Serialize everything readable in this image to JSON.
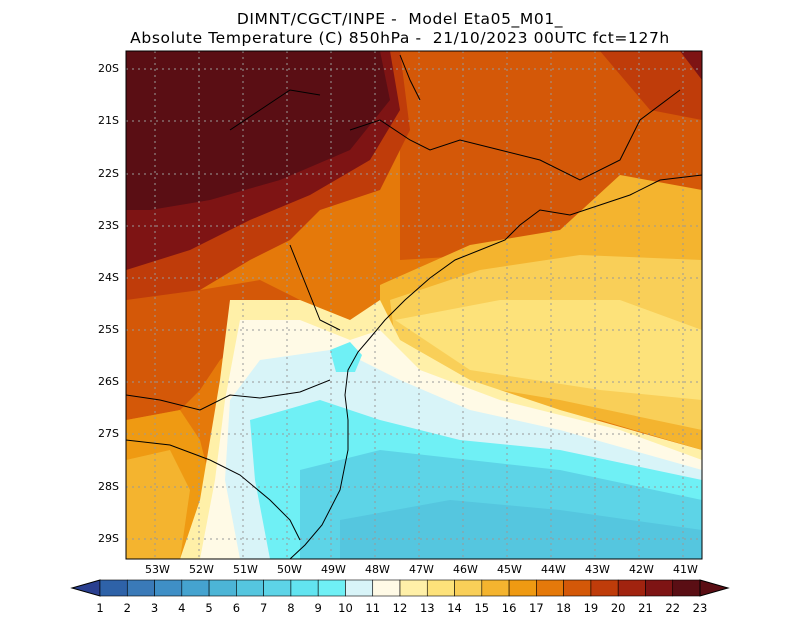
{
  "title_line1": "DIMNT/CGCT/INPE -  Model Eta05_M01_",
  "title_line2": "Absolute Temperature (C) 850hPa -  21/10/2023 00UTC fct=127h",
  "lat_labels": [
    "20S",
    "21S",
    "22S",
    "23S",
    "24S",
    "25S",
    "26S",
    "27S",
    "28S",
    "29S"
  ],
  "lon_labels": [
    "53W",
    "52W",
    "51W",
    "50W",
    "49W",
    "48W",
    "47W",
    "46W",
    "45W",
    "44W",
    "43W",
    "42W",
    "41W"
  ],
  "colorbar": {
    "labels": [
      "1",
      "2",
      "3",
      "4",
      "5",
      "6",
      "7",
      "8",
      "9",
      "10",
      "11",
      "12",
      "13",
      "14",
      "15",
      "16",
      "17",
      "18",
      "19",
      "20",
      "21",
      "22",
      "23"
    ],
    "colors": [
      "#2a3f8f",
      "#2e62a8",
      "#3a7ab8",
      "#3f8fc6",
      "#45a3cf",
      "#4cb5d6",
      "#55c6df",
      "#5dd4e7",
      "#62e4f0",
      "#6ff0f5",
      "#d8f4f8",
      "#fffae6",
      "#fff0a8",
      "#fde27a",
      "#f9cf58",
      "#f4b42f",
      "#ef9a12",
      "#e5790a",
      "#d45808",
      "#bf3c0a",
      "#a1230f",
      "#7e1414",
      "#5a0e14"
    ]
  },
  "legend_marks": "colorbar"
}
